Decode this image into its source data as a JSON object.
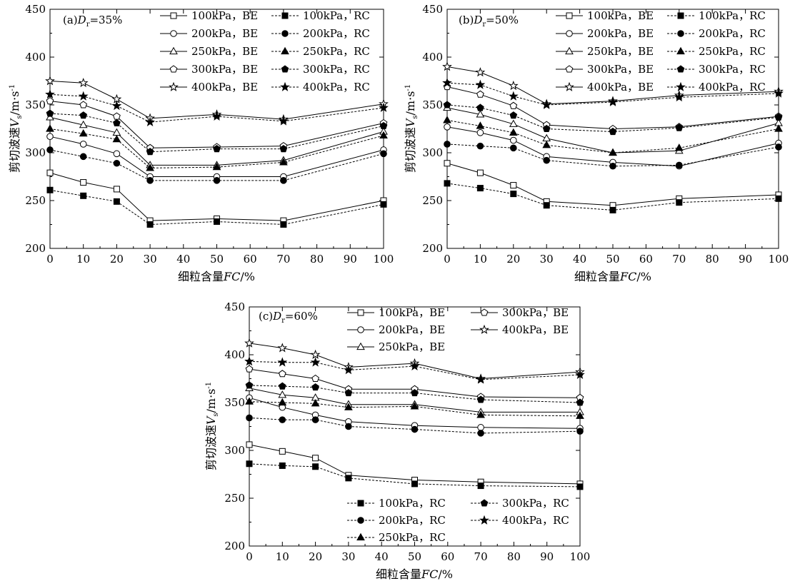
{
  "legend_sep": "，",
  "x_ticks": [
    0,
    10,
    20,
    30,
    40,
    50,
    60,
    70,
    80,
    90,
    100
  ],
  "y_ticks": [
    200,
    250,
    300,
    350,
    400,
    450
  ],
  "series_style": {
    "BE": {
      "line": "solid",
      "fill": "open"
    },
    "RC": {
      "line": "dashed",
      "fill": "filled"
    },
    "markers": {
      "100kPa": "square",
      "200kPa": "circle",
      "250kPa": "triangle",
      "300kPa": "pentagon",
      "400kPa": "star"
    }
  },
  "chart_data": [
    {
      "type": "line",
      "panel": "(a)",
      "title": "(a) Dr=35%",
      "title_prefix": "(a)",
      "title_var": "D",
      "title_sub": "r",
      "title_rest": "=35%",
      "xlabel": "细粒含量FC/%",
      "xlabel_main": "细粒含量",
      "xlabel_var": "FC",
      "xlabel_unit": "/%",
      "ylabel": "剪切波速Vs/m·s-1",
      "ylabel_main": "剪切波速",
      "ylabel_var": "V",
      "ylabel_sub": "s",
      "ylabel_unit": "/m·s",
      "ylabel_exp": "-1",
      "xlim": [
        0,
        100
      ],
      "ylim": [
        200,
        450
      ],
      "x": [
        0,
        10,
        20,
        30,
        50,
        70,
        100
      ],
      "series": [
        {
          "name": "100kPa，BE",
          "pressure": "100kPa",
          "method": "BE",
          "values": [
            279,
            269,
            262,
            229,
            231,
            229,
            250
          ]
        },
        {
          "name": "200kPa，BE",
          "pressure": "200kPa",
          "method": "BE",
          "values": [
            317,
            309,
            299,
            275,
            275,
            275,
            303
          ]
        },
        {
          "name": "250kPa，BE",
          "pressure": "250kPa",
          "method": "BE",
          "values": [
            337,
            329,
            321,
            287,
            287,
            292,
            322
          ]
        },
        {
          "name": "300kPa，BE",
          "pressure": "300kPa",
          "method": "BE",
          "values": [
            354,
            350,
            338,
            305,
            306,
            307,
            331
          ]
        },
        {
          "name": "400kPa，BE",
          "pressure": "400kPa",
          "method": "BE",
          "values": [
            375,
            373,
            356,
            336,
            340,
            335,
            351
          ]
        },
        {
          "name": "100kPa，RC",
          "pressure": "100kPa",
          "method": "RC",
          "values": [
            261,
            255,
            249,
            225,
            228,
            225,
            246
          ]
        },
        {
          "name": "200kPa，RC",
          "pressure": "200kPa",
          "method": "RC",
          "values": [
            303,
            296,
            289,
            271,
            271,
            271,
            299
          ]
        },
        {
          "name": "250kPa，RC",
          "pressure": "250kPa",
          "method": "RC",
          "values": [
            325,
            320,
            314,
            284,
            285,
            290,
            318
          ]
        },
        {
          "name": "300kPa，RC",
          "pressure": "300kPa",
          "method": "RC",
          "values": [
            341,
            339,
            331,
            301,
            304,
            304,
            328
          ]
        },
        {
          "name": "400kPa，RC",
          "pressure": "400kPa",
          "method": "RC",
          "values": [
            361,
            359,
            349,
            332,
            338,
            333,
            347
          ]
        }
      ]
    },
    {
      "type": "line",
      "panel": "(b)",
      "title": "(b) Dr=50%",
      "title_prefix": "(b)",
      "title_var": "D",
      "title_sub": "r",
      "title_rest": "=50%",
      "xlabel": "细粒含量FC/%",
      "xlabel_main": "细粒含量",
      "xlabel_var": "FC",
      "xlabel_unit": "/%",
      "ylabel": "剪切波速Vs/m·s-1",
      "ylabel_main": "剪切波速",
      "ylabel_var": "V",
      "ylabel_sub": "s",
      "ylabel_unit": "/m·s",
      "ylabel_exp": "-1",
      "xlim": [
        0,
        100
      ],
      "ylim": [
        200,
        450
      ],
      "x": [
        0,
        10,
        20,
        30,
        50,
        70,
        100
      ],
      "series": [
        {
          "name": "100kPa，BE",
          "pressure": "100kPa",
          "method": "BE",
          "values": [
            289,
            279,
            266,
            249,
            245,
            252,
            256
          ]
        },
        {
          "name": "200kPa，BE",
          "pressure": "200kPa",
          "method": "BE",
          "values": [
            327,
            321,
            313,
            296,
            290,
            286,
            310
          ]
        },
        {
          "name": "250kPa，BE",
          "pressure": "250kPa",
          "method": "BE",
          "values": [
            347,
            340,
            330,
            315,
            300,
            302,
            331
          ]
        },
        {
          "name": "300kPa，BE",
          "pressure": "300kPa",
          "method": "BE",
          "values": [
            369,
            361,
            349,
            329,
            325,
            327,
            338
          ]
        },
        {
          "name": "400kPa，BE",
          "pressure": "400kPa",
          "method": "BE",
          "values": [
            390,
            384,
            370,
            351,
            354,
            360,
            364
          ]
        },
        {
          "name": "100kPa，RC",
          "pressure": "100kPa",
          "method": "RC",
          "values": [
            268,
            263,
            257,
            245,
            240,
            248,
            252
          ]
        },
        {
          "name": "200kPa，RC",
          "pressure": "200kPa",
          "method": "RC",
          "values": [
            309,
            307,
            305,
            292,
            286,
            287,
            306
          ]
        },
        {
          "name": "250kPa，RC",
          "pressure": "250kPa",
          "method": "RC",
          "values": [
            334,
            328,
            321,
            308,
            300,
            305,
            325
          ]
        },
        {
          "name": "300kPa，RC",
          "pressure": "300kPa",
          "method": "RC",
          "values": [
            350,
            347,
            339,
            325,
            322,
            326,
            337
          ]
        },
        {
          "name": "400kPa，RC",
          "pressure": "400kPa",
          "method": "RC",
          "values": [
            373,
            371,
            359,
            350,
            353,
            358,
            362
          ]
        }
      ]
    },
    {
      "type": "line",
      "panel": "(c)",
      "title": "(c) Dr=60%",
      "title_prefix": "(c)",
      "title_var": "D",
      "title_sub": "r",
      "title_rest": "=60%",
      "xlabel": "细粒含量FC/%",
      "xlabel_main": "细粒含量",
      "xlabel_var": "FC",
      "xlabel_unit": "/%",
      "ylabel": "剪切波速Vs/m·s-1",
      "ylabel_main": "剪切波速",
      "ylabel_var": "V",
      "ylabel_sub": "s",
      "ylabel_unit": "/m·s",
      "ylabel_exp": "-1",
      "xlim": [
        0,
        100
      ],
      "ylim": [
        200,
        450
      ],
      "x": [
        0,
        10,
        20,
        30,
        50,
        70,
        100
      ],
      "series": [
        {
          "name": "100kPa，BE",
          "pressure": "100kPa",
          "method": "BE",
          "values": [
            306,
            299,
            292,
            274,
            269,
            267,
            265
          ]
        },
        {
          "name": "200kPa，BE",
          "pressure": "200kPa",
          "method": "BE",
          "values": [
            355,
            345,
            337,
            330,
            326,
            324,
            323
          ]
        },
        {
          "name": "250kPa，BE",
          "pressure": "250kPa",
          "method": "BE",
          "values": [
            365,
            358,
            355,
            348,
            348,
            340,
            340
          ]
        },
        {
          "name": "300kPa，BE",
          "pressure": "300kPa",
          "method": "BE",
          "values": [
            385,
            380,
            375,
            364,
            364,
            356,
            355
          ]
        },
        {
          "name": "400kPa，BE",
          "pressure": "400kPa",
          "method": "BE",
          "values": [
            412,
            407,
            400,
            387,
            391,
            375,
            382
          ]
        },
        {
          "name": "100kPa，RC",
          "pressure": "100kPa",
          "method": "RC",
          "values": [
            286,
            284,
            283,
            271,
            265,
            263,
            262
          ]
        },
        {
          "name": "200kPa，RC",
          "pressure": "200kPa",
          "method": "RC",
          "values": [
            334,
            332,
            332,
            325,
            322,
            318,
            320
          ]
        },
        {
          "name": "250kPa，RC",
          "pressure": "250kPa",
          "method": "RC",
          "values": [
            351,
            350,
            349,
            345,
            346,
            337,
            336
          ]
        },
        {
          "name": "300kPa，RC",
          "pressure": "300kPa",
          "method": "RC",
          "values": [
            368,
            367,
            366,
            360,
            360,
            353,
            350
          ]
        },
        {
          "name": "400kPa，RC",
          "pressure": "400kPa",
          "method": "RC",
          "values": [
            393,
            392,
            392,
            384,
            388,
            374,
            379
          ]
        }
      ]
    }
  ]
}
